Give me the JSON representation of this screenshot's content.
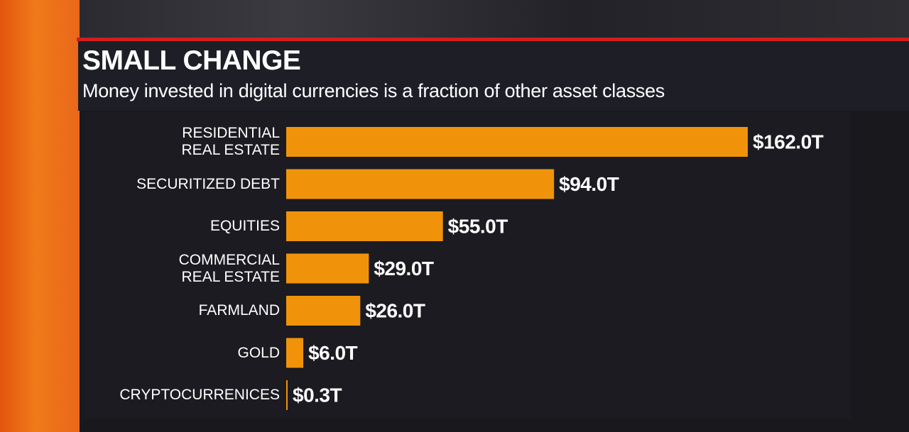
{
  "chart_data": {
    "type": "bar",
    "orientation": "horizontal",
    "title": "SMALL CHANGE",
    "subtitle": "Money invested in digital currencies is a fraction of other asset classes",
    "categories": [
      "RESIDENTIAL\nREAL ESTATE",
      "SECURITIZED DEBT",
      "EQUITIES",
      "COMMERCIAL\nREAL ESTATE",
      "FARMLAND",
      "GOLD",
      "CRYPTOCURRENICES"
    ],
    "values": [
      162.0,
      94.0,
      55.0,
      29.0,
      26.0,
      6.0,
      0.3
    ],
    "value_labels": [
      "$162.0T",
      "$94.0T",
      "$55.0T",
      "$29.0T",
      "$26.0T",
      "$6.0T",
      "$0.3T"
    ],
    "color": "#f0930a"
  }
}
